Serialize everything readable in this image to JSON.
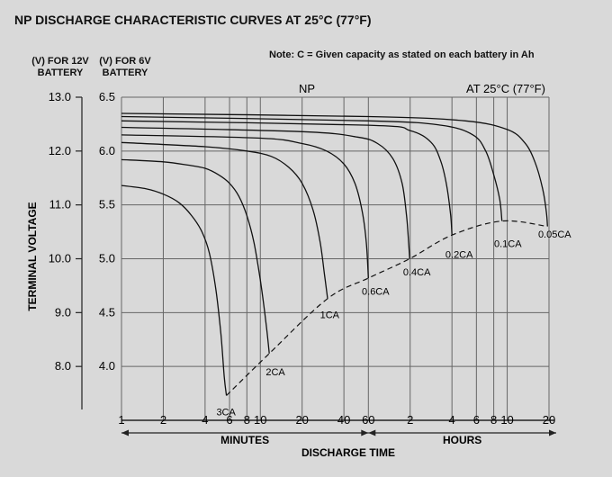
{
  "title": "NP DISCHARGE CHARACTERISTIC CURVES AT 25°C (77°F)",
  "note": "Note: C = Given capacity as stated on each battery in Ah",
  "axis_headers": {
    "v12_line1": "(V) FOR 12V",
    "v12_line2": "BATTERY",
    "v6_line1": "(V) FOR 6V",
    "v6_line2": "BATTERY"
  },
  "chart_data": {
    "type": "line",
    "title": "NP DISCHARGE CHARACTERISTIC CURVES AT 25°C (77°F)",
    "series_label": "NP",
    "condition_label": "AT 25°C (77°F)",
    "xlabel": "DISCHARGE TIME",
    "ylabel": "TERMINAL VOLTAGE",
    "x_scale": "log",
    "x_unit": "minutes",
    "xlim": [
      1,
      1200
    ],
    "x_ticks": [
      {
        "label": "1",
        "minutes": 1
      },
      {
        "label": "2",
        "minutes": 2
      },
      {
        "label": "4",
        "minutes": 4
      },
      {
        "label": "6",
        "minutes": 6
      },
      {
        "label": "8",
        "minutes": 8
      },
      {
        "label": "10",
        "minutes": 10
      },
      {
        "label": "20",
        "minutes": 20
      },
      {
        "label": "40",
        "minutes": 40
      },
      {
        "label": "60",
        "minutes": 60
      },
      {
        "label": "2",
        "minutes": 120
      },
      {
        "label": "4",
        "minutes": 240
      },
      {
        "label": "6",
        "minutes": 360
      },
      {
        "label": "8",
        "minutes": 480
      },
      {
        "label": "10",
        "minutes": 600
      },
      {
        "label": "20",
        "minutes": 1200
      }
    ],
    "x_ranges": [
      {
        "label": "MINUTES",
        "from": 1,
        "to": 60
      },
      {
        "label": "HOURS",
        "from": 60,
        "to": 1200
      }
    ],
    "y_ticks_12v": [
      "13.0",
      "12.0",
      "11.0",
      "10.0",
      "9.0",
      "8.0"
    ],
    "y_ticks_6v": [
      "6.5",
      "6.0",
      "5.5",
      "5.0",
      "4.5",
      "4.0"
    ],
    "ylim_6v": [
      3.5,
      6.5
    ],
    "ylabel_12v": "(V) FOR 12V BATTERY",
    "ylabel_6v": "(V) FOR 6V BATTERY",
    "grid": true,
    "series": [
      {
        "name": "3CA",
        "points": [
          [
            1,
            5.68
          ],
          [
            1.5,
            5.65
          ],
          [
            2,
            5.6
          ],
          [
            2.6,
            5.52
          ],
          [
            3.2,
            5.4
          ],
          [
            3.8,
            5.25
          ],
          [
            4.3,
            5.05
          ],
          [
            4.8,
            4.7
          ],
          [
            5.2,
            4.3
          ],
          [
            5.5,
            3.9
          ],
          [
            5.7,
            3.73
          ]
        ]
      },
      {
        "name": "2CA",
        "points": [
          [
            1,
            5.92
          ],
          [
            2,
            5.9
          ],
          [
            3,
            5.87
          ],
          [
            4,
            5.84
          ],
          [
            5,
            5.78
          ],
          [
            6,
            5.7
          ],
          [
            7,
            5.58
          ],
          [
            8,
            5.4
          ],
          [
            9,
            5.15
          ],
          [
            10,
            4.8
          ],
          [
            11,
            4.4
          ],
          [
            11.6,
            4.12
          ]
        ]
      },
      {
        "name": "1CA",
        "points": [
          [
            1,
            6.08
          ],
          [
            4,
            6.04
          ],
          [
            8,
            6.0
          ],
          [
            12,
            5.95
          ],
          [
            16,
            5.85
          ],
          [
            20,
            5.7
          ],
          [
            24,
            5.45
          ],
          [
            27,
            5.15
          ],
          [
            29,
            4.85
          ],
          [
            30.5,
            4.63
          ]
        ]
      },
      {
        "name": "0.6CA",
        "points": [
          [
            1,
            6.15
          ],
          [
            10,
            6.12
          ],
          [
            20,
            6.07
          ],
          [
            30,
            6.0
          ],
          [
            40,
            5.88
          ],
          [
            48,
            5.7
          ],
          [
            54,
            5.45
          ],
          [
            58,
            5.15
          ],
          [
            60,
            4.82
          ]
        ]
      },
      {
        "name": "0.4CA",
        "points": [
          [
            1,
            6.22
          ],
          [
            20,
            6.18
          ],
          [
            50,
            6.13
          ],
          [
            70,
            6.07
          ],
          [
            90,
            5.93
          ],
          [
            105,
            5.7
          ],
          [
            113,
            5.4
          ],
          [
            117,
            5.15
          ],
          [
            119,
            5.0
          ]
        ]
      },
      {
        "name": "0.2CA",
        "points": [
          [
            1,
            6.28
          ],
          [
            60,
            6.24
          ],
          [
            120,
            6.19
          ],
          [
            170,
            6.08
          ],
          [
            200,
            5.9
          ],
          [
            220,
            5.68
          ],
          [
            235,
            5.4
          ],
          [
            240,
            5.22
          ]
        ]
      },
      {
        "name": "0.1CA",
        "points": [
          [
            1,
            6.32
          ],
          [
            60,
            6.28
          ],
          [
            200,
            6.24
          ],
          [
            340,
            6.15
          ],
          [
            420,
            6.0
          ],
          [
            480,
            5.78
          ],
          [
            530,
            5.55
          ],
          [
            550,
            5.35
          ]
        ]
      },
      {
        "name": "0.05CA",
        "points": [
          [
            1,
            6.35
          ],
          [
            60,
            6.32
          ],
          [
            300,
            6.28
          ],
          [
            600,
            6.2
          ],
          [
            800,
            6.08
          ],
          [
            950,
            5.9
          ],
          [
            1080,
            5.65
          ],
          [
            1150,
            5.43
          ],
          [
            1170,
            5.3
          ]
        ]
      }
    ],
    "cutoff_line": {
      "style": "dashed",
      "points": [
        [
          5.7,
          3.73
        ],
        [
          11.6,
          4.12
        ],
        [
          30.5,
          4.63
        ],
        [
          60,
          4.82
        ],
        [
          119,
          5.0
        ],
        [
          240,
          5.22
        ],
        [
          550,
          5.35
        ],
        [
          1170,
          5.3
        ]
      ]
    },
    "series_labels": [
      {
        "name": "3CA",
        "at": [
          5.2,
          3.58
        ]
      },
      {
        "name": "2CA",
        "at": [
          11.8,
          3.95
        ]
      },
      {
        "name": "1CA",
        "at": [
          29,
          4.48
        ]
      },
      {
        "name": "0.6CA",
        "at": [
          58,
          4.7
        ]
      },
      {
        "name": "0.4CA",
        "at": [
          115,
          4.88
        ]
      },
      {
        "name": "0.2CA",
        "at": [
          232,
          5.04
        ]
      },
      {
        "name": "0.1CA",
        "at": [
          520,
          5.14
        ]
      },
      {
        "name": "0.05CA",
        "at": [
          1080,
          5.23
        ]
      }
    ]
  }
}
